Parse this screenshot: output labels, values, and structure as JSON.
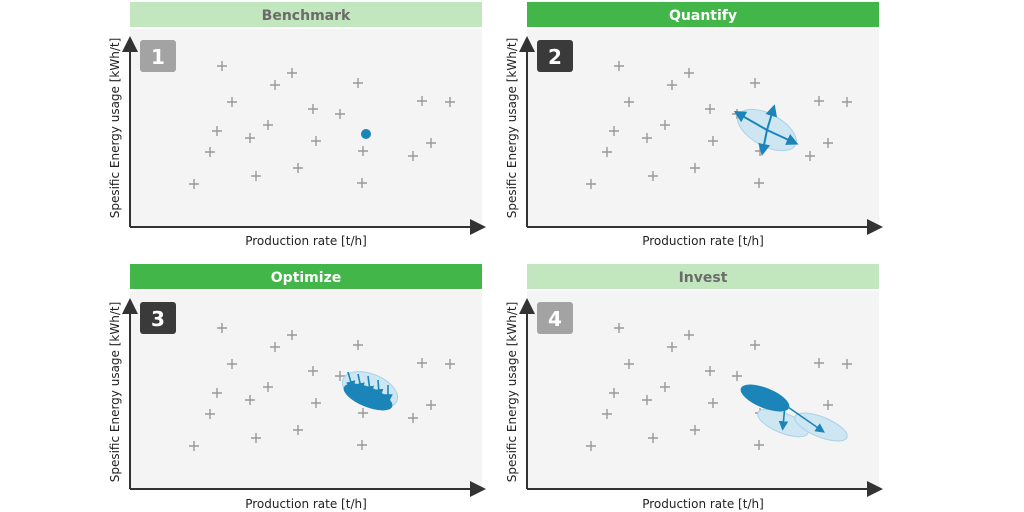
{
  "panels": [
    {
      "title": "Benchmark",
      "number": "1",
      "ylabel": "Spesific Energy usage [kWh/t]",
      "xlabel": "Production rate [t/h]",
      "header_color": "#c2e6bd",
      "header_text_color": "#6b6b6b",
      "badge_color": "#a3a3a3",
      "overlay": "benchmark"
    },
    {
      "title": "Quantify",
      "number": "2",
      "ylabel": "Spesific Energy usage [kWh/t]",
      "xlabel": "Production rate [t/h]",
      "header_color": "#43b649",
      "header_text_color": "#ffffff",
      "badge_color": "#3a3a3a",
      "overlay": "quantify"
    },
    {
      "title": "Optimize",
      "number": "3",
      "ylabel": "Spesific Energy usage [kWh/t]",
      "xlabel": "Production rate [t/h]",
      "header_color": "#43b649",
      "header_text_color": "#ffffff",
      "badge_color": "#3a3a3a",
      "overlay": "optimize"
    },
    {
      "title": "Invest",
      "number": "4",
      "ylabel": "Spesific Energy usage [kWh/t]",
      "xlabel": "Production rate [t/h]",
      "header_color": "#c2e6bd",
      "header_text_color": "#6b6b6b",
      "badge_color": "#a3a3a3",
      "overlay": "invest"
    }
  ],
  "colors": {
    "accent_blue": "#1b84b8",
    "light_blue": "#cde6f2",
    "plot_bg": "#f4f4f4",
    "axis": "#333333",
    "marker": "#999999"
  }
}
